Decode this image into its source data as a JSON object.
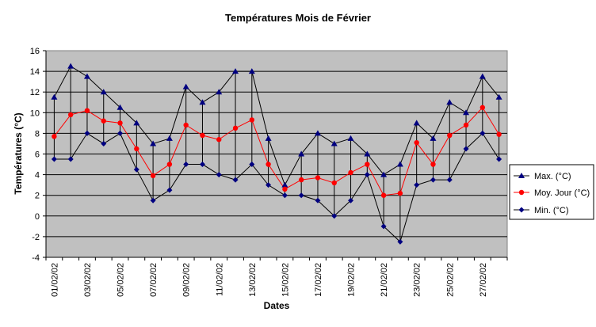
{
  "chart_data": {
    "type": "line",
    "title": "Températures Mois de Février",
    "xlabel": "Dates",
    "ylabel": "Températures (°C)",
    "ylim": [
      -4,
      16
    ],
    "yticks": [
      -4,
      -2,
      0,
      2,
      4,
      6,
      8,
      10,
      12,
      14,
      16
    ],
    "grid": true,
    "legend_position": "right",
    "x": [
      "01/02/02",
      "02/02/02",
      "03/02/02",
      "04/02/02",
      "05/02/02",
      "06/02/02",
      "07/02/02",
      "08/02/02",
      "09/02/02",
      "10/02/02",
      "11/02/02",
      "12/02/02",
      "13/02/02",
      "14/02/02",
      "15/02/02",
      "16/02/02",
      "17/02/02",
      "18/02/02",
      "19/02/02",
      "20/02/02",
      "21/02/02",
      "22/02/02",
      "23/02/02",
      "24/02/02",
      "25/02/02",
      "26/02/02",
      "27/02/02",
      "28/02/02"
    ],
    "xtick_labels": [
      "01/02/02",
      "03/02/02",
      "05/02/02",
      "07/02/02",
      "09/02/02",
      "11/02/02",
      "13/02/02",
      "15/02/02",
      "17/02/02",
      "19/02/02",
      "21/02/02",
      "23/02/02",
      "25/02/02",
      "27/02/02"
    ],
    "series": [
      {
        "name": "Max. (°C)",
        "color": "#000080",
        "marker": "triangle",
        "values": [
          11.5,
          14.5,
          13.5,
          12,
          10.5,
          9,
          7,
          7.5,
          12.5,
          11,
          12,
          14,
          14,
          7.5,
          3,
          6,
          8,
          7,
          7.5,
          6,
          4,
          5,
          9,
          7.5,
          11,
          10,
          13.5,
          11.5
        ]
      },
      {
        "name": "Moy. Jour (°C)",
        "color": "#ff0000",
        "marker": "circle",
        "values": [
          7.7,
          9.8,
          10.2,
          9.2,
          9,
          6.5,
          3.9,
          5,
          8.8,
          7.8,
          7.4,
          8.5,
          9.3,
          5,
          2.6,
          3.5,
          3.7,
          3.2,
          4.2,
          5,
          2,
          2.2,
          7.1,
          5,
          7.8,
          8.8,
          10.5,
          7.9
        ]
      },
      {
        "name": "Min. (°C)",
        "color": "#000080",
        "marker": "diamond",
        "values": [
          5.5,
          5.5,
          8,
          7,
          8,
          4.5,
          1.5,
          2.5,
          5,
          5,
          4,
          3.5,
          5,
          3,
          2,
          2,
          1.5,
          0,
          1.5,
          4,
          -1,
          -2.5,
          3,
          3.5,
          3.5,
          6.5,
          8,
          5.5
        ]
      }
    ],
    "colors": {
      "plot_background": "#c0c0c0",
      "gridline": "#000000",
      "range_line": "#000000",
      "legend_border": "#000000"
    }
  }
}
